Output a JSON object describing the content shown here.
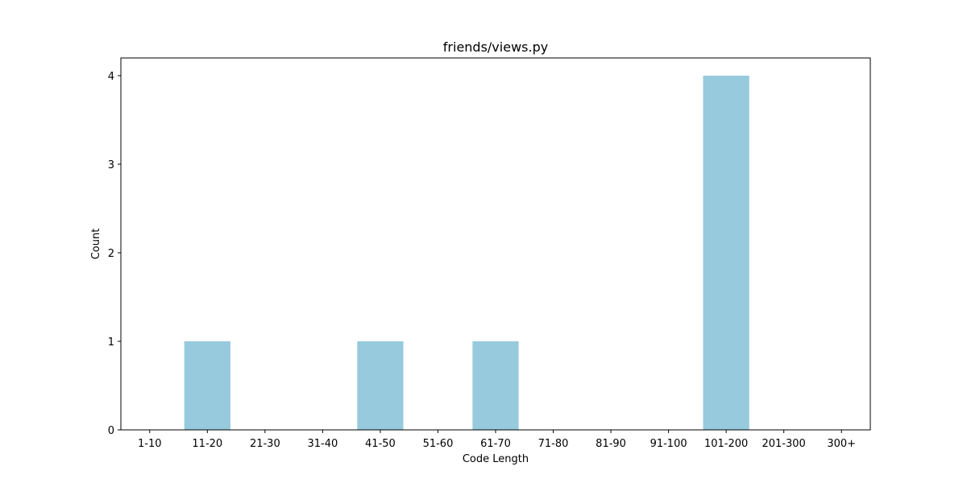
{
  "chart_data": {
    "type": "bar",
    "title": "friends/views.py",
    "xlabel": "Code Length",
    "ylabel": "Count",
    "categories": [
      "1-10",
      "11-20",
      "21-30",
      "31-40",
      "41-50",
      "51-60",
      "61-70",
      "71-80",
      "81-90",
      "91-100",
      "101-200",
      "201-300",
      "300+"
    ],
    "values": [
      0,
      1,
      0,
      0,
      1,
      0,
      1,
      0,
      0,
      0,
      4,
      0,
      0
    ],
    "ylim": [
      0,
      4.2
    ],
    "yticks": [
      0,
      1,
      2,
      3,
      4
    ],
    "bar_color": "#96cadc",
    "grid": false,
    "legend": "none"
  }
}
